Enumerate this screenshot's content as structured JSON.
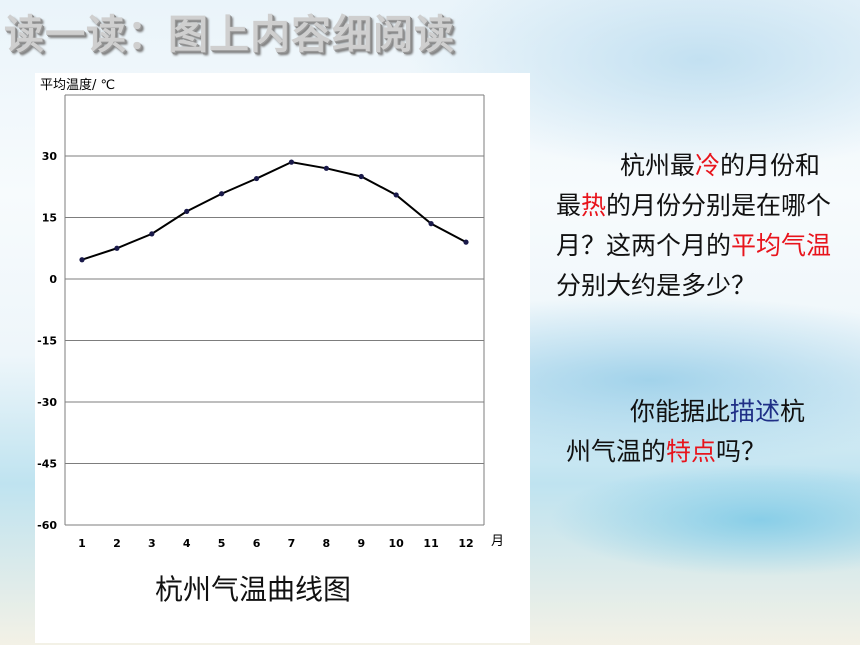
{
  "slide": {
    "title": "读一读：图上内容细阅读",
    "q1": {
      "part1": "杭州最",
      "hl1": "冷",
      "part2": "的月份和最",
      "hl2": "热",
      "part3": "的月份分别是在哪个月？这两个月的",
      "hl3": "平均气温",
      "part4": "分别大约是多少？"
    },
    "q2": {
      "part1": "你能据此",
      "hl1": "描述",
      "part2": "杭州气温的",
      "hl2": "特点",
      "part3": "吗？"
    },
    "colors": {
      "highlight_red": "#e8141c",
      "highlight_blue": "#1f2f86",
      "line": "#000000"
    }
  },
  "chart_data": {
    "type": "line",
    "title": "杭州气温曲线图",
    "ylabel": "平均温度/ ℃",
    "xlabel": "月",
    "categories": [
      "1",
      "2",
      "3",
      "4",
      "5",
      "6",
      "7",
      "8",
      "9",
      "10",
      "11",
      "12"
    ],
    "values": [
      4.7,
      7.5,
      11,
      16.5,
      20.8,
      24.5,
      28.5,
      27,
      25,
      20.5,
      13.5,
      9
    ],
    "yticks": [
      "30",
      "15",
      "0",
      "-15",
      "-30",
      "-45",
      "-60"
    ],
    "ylim": [
      -60,
      45
    ],
    "grid": true,
    "legend": "none"
  }
}
